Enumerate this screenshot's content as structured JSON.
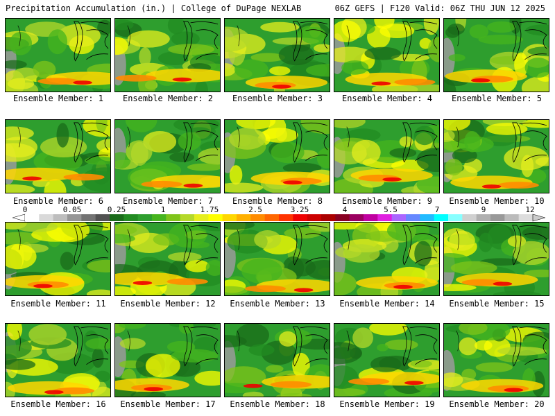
{
  "title": {
    "left": "Precipitation Accumulation (in.) | College of DuPage NEXLAB",
    "right": "06Z GEFS | F120 Valid: 06Z THU JUN 12 2025"
  },
  "panels": [
    {
      "label": "Ensemble Member: 1"
    },
    {
      "label": "Ensemble Member: 2"
    },
    {
      "label": "Ensemble Member: 3"
    },
    {
      "label": "Ensemble Member: 4"
    },
    {
      "label": "Ensemble Member: 5"
    },
    {
      "label": "Ensemble Member: 6"
    },
    {
      "label": "Ensemble Member: 7"
    },
    {
      "label": "Ensemble Member: 8"
    },
    {
      "label": "Ensemble Member: 9"
    },
    {
      "label": "Ensemble Member: 10"
    },
    {
      "label": "Ensemble Member: 11"
    },
    {
      "label": "Ensemble Member: 12"
    },
    {
      "label": "Ensemble Member: 13"
    },
    {
      "label": "Ensemble Member: 14"
    },
    {
      "label": "Ensemble Member: 15"
    },
    {
      "label": "Ensemble Member: 16"
    },
    {
      "label": "Ensemble Member: 17"
    },
    {
      "label": "Ensemble Member: 18"
    },
    {
      "label": "Ensemble Member: 19"
    },
    {
      "label": "Ensemble Member: 20"
    }
  ],
  "colorbar": {
    "labels": [
      "0",
      "0.05",
      "0.25",
      "1",
      "1.75",
      "2.5",
      "3.25",
      "4",
      "5.5",
      "7",
      "9",
      "12"
    ],
    "colors": [
      "#ffffff",
      "#d9d9d9",
      "#bdbdbd",
      "#969696",
      "#737373",
      "#525252",
      "#1a6b1a",
      "#228b22",
      "#2e9e2e",
      "#46b41e",
      "#7fc41a",
      "#b4d82a",
      "#e6ee1e",
      "#ffff00",
      "#ffd700",
      "#ffb000",
      "#ff8c00",
      "#ff6600",
      "#ff3300",
      "#ee0000",
      "#cc0000",
      "#aa0000",
      "#880022",
      "#9a0060",
      "#c000a0",
      "#e020e0",
      "#aa66ff",
      "#6688ff",
      "#22bbff",
      "#00ffff",
      "#88ffff",
      "#d0d0d0",
      "#b0b0b0",
      "#999999",
      "#bbbbbb",
      "#dddddd"
    ]
  }
}
